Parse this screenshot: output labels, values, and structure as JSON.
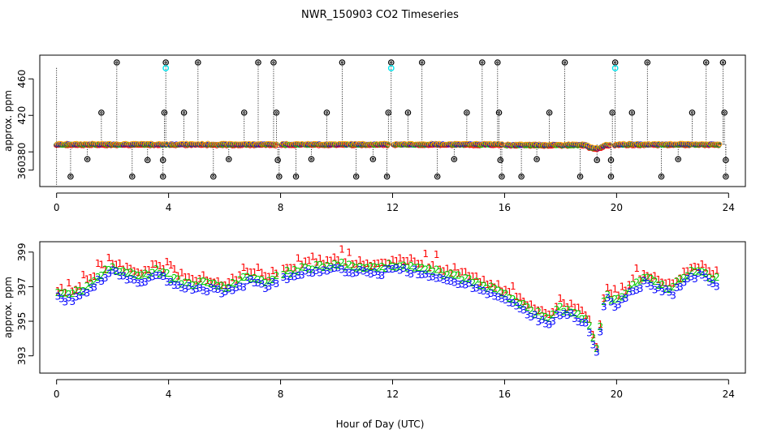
{
  "figure": {
    "title": "NWR_150903  CO2 Timeseries",
    "xlabel": "Hour of Day (UTC)"
  },
  "colors": {
    "series_1": "#ff0000",
    "series_2": "#00cc00",
    "series_3": "#0000ff",
    "flag_highlight": "#00e5ee",
    "flag_marker": "#000000",
    "average": "#ffa500"
  },
  "chart_data": [
    {
      "id": "top",
      "type": "scatter",
      "ylabel": "approx. ppm",
      "xlim": [
        -0.6,
        24.6
      ],
      "ylim": [
        342,
        486
      ],
      "xticks": [
        0,
        4,
        8,
        12,
        16,
        20,
        24
      ],
      "yticks": [
        360,
        380,
        420,
        460
      ],
      "baseline_note": "continuous ~388 ppm measurement trace (red/green/blue/orange dots)",
      "high_flags": [
        {
          "x": 2.15,
          "y": 478
        },
        {
          "x": 3.9,
          "y": 478,
          "highlight": true
        },
        {
          "x": 5.05,
          "y": 478
        },
        {
          "x": 7.2,
          "y": 478
        },
        {
          "x": 7.75,
          "y": 478
        },
        {
          "x": 10.2,
          "y": 478
        },
        {
          "x": 11.95,
          "y": 478,
          "highlight": true
        },
        {
          "x": 13.05,
          "y": 478
        },
        {
          "x": 15.2,
          "y": 478
        },
        {
          "x": 15.75,
          "y": 478
        },
        {
          "x": 18.15,
          "y": 478
        },
        {
          "x": 19.95,
          "y": 478,
          "highlight": true
        },
        {
          "x": 21.1,
          "y": 478
        },
        {
          "x": 23.2,
          "y": 478
        },
        {
          "x": 23.8,
          "y": 478
        }
      ],
      "mid_flags": [
        {
          "x": 1.6,
          "y": 423
        },
        {
          "x": 3.85,
          "y": 423
        },
        {
          "x": 4.55,
          "y": 423
        },
        {
          "x": 6.7,
          "y": 423
        },
        {
          "x": 7.85,
          "y": 423
        },
        {
          "x": 9.65,
          "y": 423
        },
        {
          "x": 11.85,
          "y": 423
        },
        {
          "x": 12.55,
          "y": 423
        },
        {
          "x": 14.65,
          "y": 423
        },
        {
          "x": 15.8,
          "y": 423
        },
        {
          "x": 17.6,
          "y": 423
        },
        {
          "x": 19.85,
          "y": 423
        },
        {
          "x": 20.55,
          "y": 423
        },
        {
          "x": 22.7,
          "y": 423
        },
        {
          "x": 23.85,
          "y": 423
        }
      ],
      "low_flags": [
        {
          "x": 0.5,
          "y": 353
        },
        {
          "x": 1.1,
          "y": 372
        },
        {
          "x": 2.7,
          "y": 353
        },
        {
          "x": 3.25,
          "y": 371
        },
        {
          "x": 3.8,
          "y": 371
        },
        {
          "x": 3.8,
          "y": 353
        },
        {
          "x": 5.6,
          "y": 353
        },
        {
          "x": 6.15,
          "y": 372
        },
        {
          "x": 7.9,
          "y": 371
        },
        {
          "x": 7.95,
          "y": 353
        },
        {
          "x": 8.55,
          "y": 353
        },
        {
          "x": 9.1,
          "y": 372
        },
        {
          "x": 10.7,
          "y": 353
        },
        {
          "x": 11.3,
          "y": 372
        },
        {
          "x": 11.8,
          "y": 353
        },
        {
          "x": 13.6,
          "y": 353
        },
        {
          "x": 14.2,
          "y": 372
        },
        {
          "x": 15.85,
          "y": 371
        },
        {
          "x": 15.9,
          "y": 353
        },
        {
          "x": 16.6,
          "y": 353
        },
        {
          "x": 17.15,
          "y": 372
        },
        {
          "x": 18.7,
          "y": 353
        },
        {
          "x": 19.3,
          "y": 371
        },
        {
          "x": 19.8,
          "y": 371
        },
        {
          "x": 19.8,
          "y": 353
        },
        {
          "x": 21.6,
          "y": 353
        },
        {
          "x": 22.2,
          "y": 372
        },
        {
          "x": 23.9,
          "y": 371
        },
        {
          "x": 23.9,
          "y": 353
        }
      ],
      "gaps": [
        [
          3.95,
          4.0
        ],
        [
          7.85,
          8.0
        ],
        [
          11.9,
          12.0
        ],
        [
          15.95,
          16.0
        ],
        [
          19.8,
          19.9
        ]
      ]
    },
    {
      "id": "bottom",
      "type": "scatter",
      "ylabel": "approx. ppm",
      "xlim": [
        -0.6,
        24.6
      ],
      "ylim": [
        392.0,
        399.6
      ],
      "xticks": [
        0,
        4,
        8,
        12,
        16,
        20,
        24
      ],
      "yticks": [
        393,
        395,
        397,
        399
      ],
      "series": [
        {
          "name": "1",
          "marker_text": "1",
          "offset": 0.55
        },
        {
          "name": "2",
          "marker_text": "2",
          "offset": 0.3
        },
        {
          "name": "3",
          "marker_text": "3",
          "offset": 0.0
        }
      ],
      "trend": [
        {
          "x": 0.0,
          "y": 396.3
        },
        {
          "x": 0.5,
          "y": 396.2
        },
        {
          "x": 1.0,
          "y": 396.6
        },
        {
          "x": 1.5,
          "y": 397.3
        },
        {
          "x": 2.0,
          "y": 397.8
        },
        {
          "x": 2.5,
          "y": 397.5
        },
        {
          "x": 3.0,
          "y": 397.2
        },
        {
          "x": 3.5,
          "y": 397.7
        },
        {
          "x": 4.0,
          "y": 397.3
        },
        {
          "x": 4.5,
          "y": 396.9
        },
        {
          "x": 5.0,
          "y": 396.9
        },
        {
          "x": 5.5,
          "y": 396.8
        },
        {
          "x": 6.0,
          "y": 396.6
        },
        {
          "x": 6.5,
          "y": 397.0
        },
        {
          "x": 7.0,
          "y": 397.3
        },
        {
          "x": 7.5,
          "y": 397.0
        },
        {
          "x": 8.0,
          "y": 397.4
        },
        {
          "x": 8.5,
          "y": 397.6
        },
        {
          "x": 9.0,
          "y": 397.8
        },
        {
          "x": 9.5,
          "y": 397.9
        },
        {
          "x": 10.0,
          "y": 398.0
        },
        {
          "x": 10.5,
          "y": 397.9
        },
        {
          "x": 11.0,
          "y": 397.8
        },
        {
          "x": 11.5,
          "y": 397.7
        },
        {
          "x": 12.0,
          "y": 398.0
        },
        {
          "x": 12.5,
          "y": 397.9
        },
        {
          "x": 13.0,
          "y": 397.8
        },
        {
          "x": 13.5,
          "y": 397.6
        },
        {
          "x": 14.0,
          "y": 397.4
        },
        {
          "x": 14.5,
          "y": 397.2
        },
        {
          "x": 15.0,
          "y": 396.9
        },
        {
          "x": 15.5,
          "y": 396.6
        },
        {
          "x": 16.0,
          "y": 396.2
        },
        {
          "x": 16.5,
          "y": 395.8
        },
        {
          "x": 17.0,
          "y": 395.3
        },
        {
          "x": 17.5,
          "y": 394.8
        },
        {
          "x": 18.0,
          "y": 395.4
        },
        {
          "x": 18.5,
          "y": 395.3
        },
        {
          "x": 19.0,
          "y": 394.6
        },
        {
          "x": 19.3,
          "y": 393.0
        },
        {
          "x": 19.6,
          "y": 396.3
        },
        {
          "x": 20.0,
          "y": 395.8
        },
        {
          "x": 20.5,
          "y": 396.6
        },
        {
          "x": 21.0,
          "y": 397.2
        },
        {
          "x": 21.5,
          "y": 396.8
        },
        {
          "x": 22.0,
          "y": 396.6
        },
        {
          "x": 22.5,
          "y": 397.4
        },
        {
          "x": 23.0,
          "y": 397.7
        },
        {
          "x": 23.5,
          "y": 397.1
        }
      ],
      "gaps": [
        [
          3.95,
          4.0
        ],
        [
          7.85,
          8.0
        ],
        [
          11.9,
          12.0
        ],
        [
          15.95,
          16.0
        ]
      ]
    }
  ]
}
